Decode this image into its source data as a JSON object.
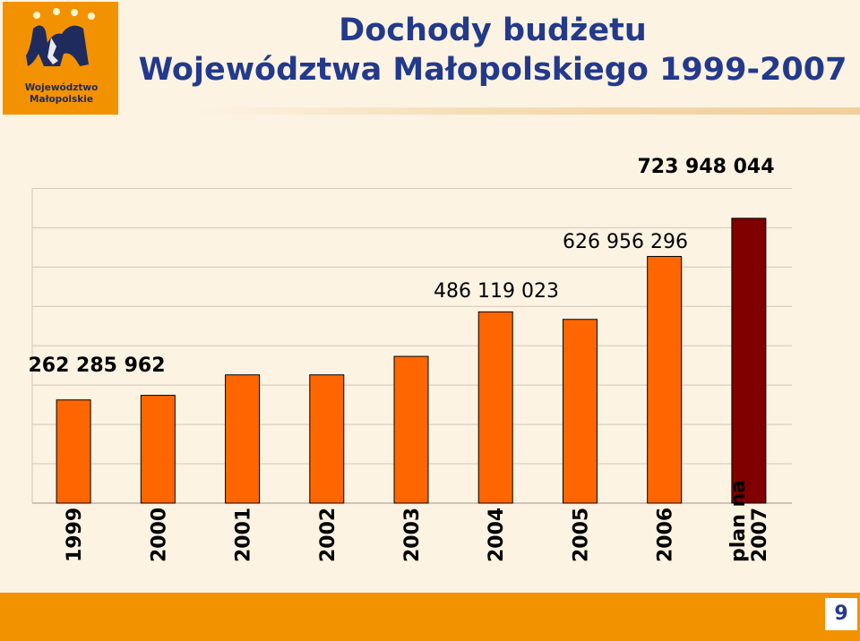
{
  "slide": {
    "logo_text_1": "Województwo",
    "logo_text_2": "Małopolskie",
    "title_line_1": "Dochody budżetu",
    "title_line_2": "Województwa Małopolskiego 1999-2007",
    "page_number": "9",
    "colors": {
      "background": "#fdf3e3",
      "accent": "#f39200",
      "title": "#233a8c"
    }
  },
  "chart_data": {
    "type": "bar",
    "title": "",
    "xlabel": "",
    "ylabel": "",
    "ylim": [
      0,
      800000000
    ],
    "grid": true,
    "legend": "none",
    "categories": [
      "1999",
      "2000",
      "2001",
      "2002",
      "2003",
      "2004",
      "2005",
      "2006",
      "plan na 2007"
    ],
    "values": [
      262285962,
      274000000,
      326000000,
      326000000,
      373000000,
      486119023,
      467000000,
      626956296,
      723948044
    ],
    "bar_colors": [
      "#ff6600",
      "#ff6600",
      "#ff6600",
      "#ff6600",
      "#ff6600",
      "#ff6600",
      "#ff6600",
      "#ff6600",
      "#800000"
    ],
    "data_labels": [
      {
        "index": 0,
        "text": "262 285 962"
      },
      {
        "index": 5,
        "text": "486 119 023"
      },
      {
        "index": 7,
        "text": "626 956 296"
      },
      {
        "index": 8,
        "text": "723 948 044"
      }
    ]
  }
}
